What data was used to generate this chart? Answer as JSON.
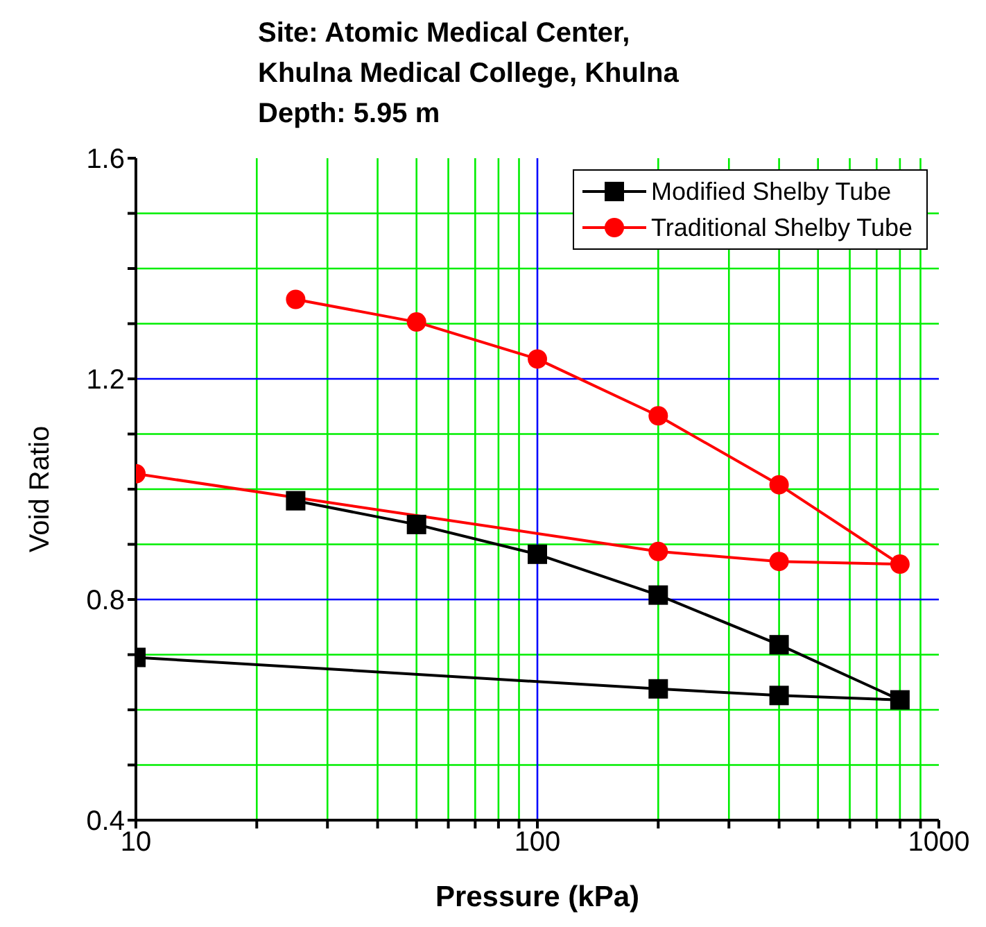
{
  "chart_data": {
    "type": "line",
    "title": "Site: Atomic Medical Center,\nKhulna Medical College, Khulna\nDepth: 5.95 m",
    "xlabel": "Pressure (kPa)",
    "ylabel": "Void Ratio",
    "log": "x",
    "xlim": [
      10,
      1000
    ],
    "ylim": [
      0.4,
      1.6
    ],
    "xticks": [
      10,
      {
        "value": 20,
        "label": null
      },
      {
        "value": 30,
        "label": null
      },
      {
        "value": 40,
        "label": null
      },
      {
        "value": 50,
        "label": null
      },
      {
        "value": 60,
        "label": null
      },
      {
        "value": 70,
        "label": null
      },
      {
        "value": 80,
        "label": null
      },
      {
        "value": 90,
        "label": null
      },
      100,
      {
        "value": 200,
        "label": null
      },
      {
        "value": 300,
        "label": null
      },
      {
        "value": 400,
        "label": null
      },
      {
        "value": 500,
        "label": null
      },
      {
        "value": 600,
        "label": null
      },
      {
        "value": 700,
        "label": null
      },
      {
        "value": 800,
        "label": null
      },
      {
        "value": 900,
        "label": null
      },
      1000
    ],
    "yticks": [
      0.4,
      {
        "value": 0.5,
        "label": null
      },
      {
        "value": 0.6,
        "label": null
      },
      {
        "value": 0.7,
        "label": null
      },
      0.8,
      {
        "value": 0.9,
        "label": null
      },
      {
        "value": 1.0,
        "label": null
      },
      {
        "value": 1.1,
        "label": null
      },
      1.2,
      {
        "value": 1.3,
        "label": null
      },
      {
        "value": 1.4,
        "label": null
      },
      {
        "value": 1.5,
        "label": null
      },
      1.6
    ],
    "grid": true,
    "legend": "top right",
    "line_style": "solid",
    "series": [
      {
        "name": "Modified Shelby Tube",
        "color": "#000000",
        "marker": "square",
        "x": [
          25,
          50,
          100,
          200,
          400,
          800,
          400,
          200,
          10
        ],
        "values": [
          0.979,
          0.936,
          0.882,
          0.808,
          0.718,
          0.618,
          0.626,
          0.638,
          0.695
        ]
      },
      {
        "name": "Traditional Shelby Tube",
        "color": "#ff0000",
        "marker": "circle",
        "x": [
          25,
          50,
          100,
          200,
          400,
          800,
          400,
          200,
          10
        ],
        "values": [
          1.344,
          1.303,
          1.236,
          1.133,
          1.008,
          0.864,
          0.869,
          0.887,
          1.028
        ]
      }
    ]
  }
}
